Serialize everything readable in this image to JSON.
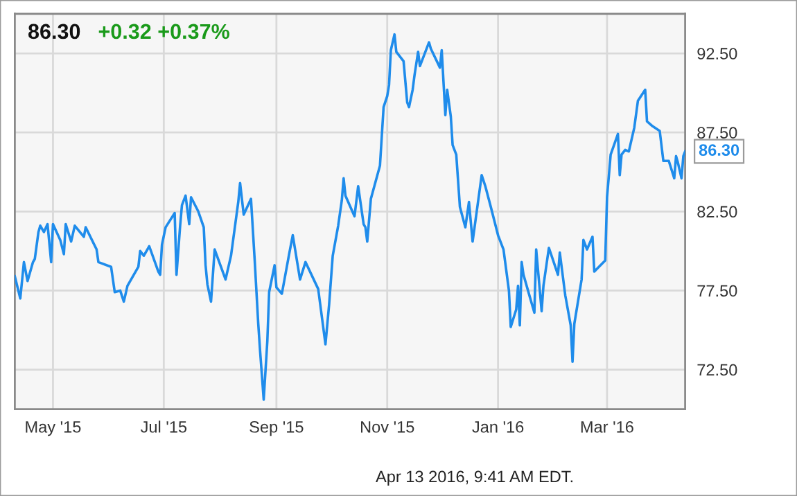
{
  "chart_data": {
    "type": "line",
    "title": "86.30",
    "subtitle": "+0.32 +0.37%",
    "x": [
      "2015-04-10",
      "2015-04-13",
      "2015-04-15",
      "2015-04-17",
      "2015-04-20",
      "2015-04-21",
      "2015-04-23",
      "2015-04-24",
      "2015-04-26",
      "2015-04-28",
      "2015-04-30",
      "2015-05-01",
      "2015-05-05",
      "2015-05-07",
      "2015-05-08",
      "2015-05-11",
      "2015-05-13",
      "2015-05-18",
      "2015-05-19",
      "2015-05-25",
      "2015-05-26",
      "2015-06-02",
      "2015-06-04",
      "2015-06-07",
      "2015-06-09",
      "2015-06-11",
      "2015-06-17",
      "2015-06-18",
      "2015-06-20",
      "2015-06-23",
      "2015-06-28",
      "2015-06-29",
      "2015-06-30",
      "2015-07-02",
      "2015-07-07",
      "2015-07-08",
      "2015-07-10",
      "2015-07-11",
      "2015-07-13",
      "2015-07-15",
      "2015-07-16",
      "2015-07-20",
      "2015-07-23",
      "2015-07-24",
      "2015-07-25",
      "2015-07-27",
      "2015-07-29",
      "2015-08-04",
      "2015-08-07",
      "2015-08-11",
      "2015-08-12",
      "2015-08-14",
      "2015-08-18",
      "2015-08-20",
      "2015-08-22",
      "2015-08-23",
      "2015-08-25",
      "2015-08-27",
      "2015-08-28",
      "2015-08-31",
      "2015-09-01",
      "2015-09-04",
      "2015-09-08",
      "2015-09-10",
      "2015-09-14",
      "2015-09-17",
      "2015-09-24",
      "2015-09-28",
      "2015-09-30",
      "2015-10-02",
      "2015-10-05",
      "2015-10-07",
      "2015-10-08",
      "2015-10-09",
      "2015-10-14",
      "2015-10-16",
      "2015-10-19",
      "2015-10-20",
      "2015-10-21",
      "2015-10-23",
      "2015-10-28",
      "2015-10-30",
      "2015-11-01",
      "2015-11-02",
      "2015-11-03",
      "2015-11-05",
      "2015-11-06",
      "2015-11-10",
      "2015-11-12",
      "2015-11-13",
      "2015-11-15",
      "2015-11-16",
      "2015-11-18",
      "2015-11-19",
      "2015-11-24",
      "2015-11-25",
      "2015-11-30",
      "2015-12-01",
      "2015-12-03",
      "2015-12-04",
      "2015-12-06",
      "2015-12-07",
      "2015-12-09",
      "2015-12-11",
      "2015-12-14",
      "2015-12-16",
      "2015-12-18",
      "2015-12-23",
      "2015-12-25",
      "2015-12-28",
      "2016-01-01",
      "2016-01-04",
      "2016-01-07",
      "2016-01-08",
      "2016-01-11",
      "2016-01-12",
      "2016-01-13",
      "2016-01-14",
      "2016-01-15",
      "2016-01-21",
      "2016-01-22",
      "2016-01-25",
      "2016-01-26",
      "2016-01-29",
      "2016-02-03",
      "2016-02-04",
      "2016-02-07",
      "2016-02-10",
      "2016-02-11",
      "2016-02-12",
      "2016-02-16",
      "2016-02-17",
      "2016-02-19",
      "2016-02-22",
      "2016-02-23",
      "2016-02-29",
      "2016-03-01",
      "2016-03-03",
      "2016-03-07",
      "2016-03-08",
      "2016-03-09",
      "2016-03-11",
      "2016-03-13",
      "2016-03-16",
      "2016-03-18",
      "2016-03-22",
      "2016-03-23",
      "2016-03-26",
      "2016-03-30",
      "2016-04-01",
      "2016-04-04",
      "2016-04-07",
      "2016-04-08",
      "2016-04-09",
      "2016-04-11",
      "2016-04-12",
      "2016-04-13"
    ],
    "series": [
      {
        "color": "#1f8ceb",
        "values": [
          78.4,
          77.0,
          79.3,
          78.1,
          79.3,
          79.5,
          81.2,
          81.6,
          81.2,
          81.7,
          79.3,
          81.7,
          80.7,
          79.8,
          81.7,
          80.6,
          81.6,
          80.9,
          81.5,
          80.1,
          79.3,
          79.0,
          77.4,
          77.5,
          76.8,
          77.8,
          79.0,
          80.0,
          79.7,
          80.3,
          78.7,
          78.5,
          80.4,
          81.5,
          82.4,
          78.5,
          81.6,
          82.9,
          83.5,
          81.7,
          83.4,
          82.5,
          81.5,
          79.1,
          77.9,
          76.8,
          80.1,
          78.2,
          79.7,
          83.1,
          84.3,
          82.3,
          83.3,
          79.5,
          75.4,
          73.7,
          70.6,
          74.3,
          77.4,
          79.1,
          77.7,
          77.3,
          79.8,
          81.0,
          78.2,
          79.3,
          77.6,
          74.1,
          76.6,
          79.7,
          81.6,
          83.2,
          84.6,
          83.5,
          82.2,
          84.1,
          81.7,
          81.5,
          80.6,
          83.3,
          85.4,
          89.1,
          89.8,
          90.5,
          92.7,
          93.7,
          92.6,
          92.0,
          89.4,
          89.1,
          90.2,
          91.1,
          92.6,
          91.7,
          93.2,
          92.8,
          91.6,
          92.7,
          88.6,
          90.2,
          88.5,
          86.7,
          86.1,
          82.8,
          81.5,
          83.1,
          80.6,
          84.8,
          84.1,
          82.8,
          81.0,
          80.1,
          77.5,
          75.2,
          76.3,
          77.8,
          75.3,
          79.3,
          78.5,
          76.1,
          80.1,
          76.2,
          77.8,
          80.2,
          78.5,
          79.9,
          77.2,
          75.3,
          73.0,
          75.4,
          78.2,
          80.7,
          80.1,
          80.9,
          78.7,
          79.4,
          83.4,
          86.1,
          87.4,
          84.8,
          86.1,
          86.4,
          86.3,
          87.8,
          89.5,
          90.2,
          88.2,
          87.9,
          87.6,
          85.7,
          85.7,
          84.6,
          86.0,
          85.6,
          84.6,
          86.0,
          86.3
        ]
      }
    ],
    "xlim": [
      "2015-04-10",
      "2016-04-13"
    ],
    "ylim": [
      70,
      95
    ],
    "xticks": [
      {
        "value": "2015-05-01",
        "label": "May '15"
      },
      {
        "value": "2015-07-01",
        "label": "Jul '15"
      },
      {
        "value": "2015-09-01",
        "label": "Sep '15"
      },
      {
        "value": "2015-11-01",
        "label": "Nov '15"
      },
      {
        "value": "2016-01-01",
        "label": "Jan '16"
      },
      {
        "value": "2016-03-01",
        "label": "Mar '16"
      }
    ],
    "yticks": [
      {
        "value": 72.5,
        "label": "72.50"
      },
      {
        "value": 77.5,
        "label": "77.50"
      },
      {
        "value": 82.5,
        "label": "82.50"
      },
      {
        "value": 87.5,
        "label": "87.50"
      },
      {
        "value": 92.5,
        "label": "92.50"
      }
    ],
    "grid": true,
    "annotations": [
      {
        "text": "86.30",
        "x": "2016-04-13",
        "y": 86.3
      },
      "Apr 13 2016, 9:41 AM EDT."
    ]
  }
}
